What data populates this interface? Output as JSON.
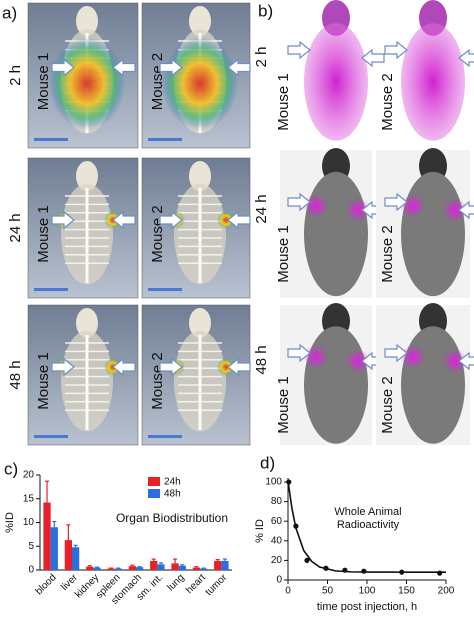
{
  "panel_a": {
    "label": "a)",
    "rows": [
      {
        "time": "2 h",
        "mice": [
          "Mouse 1",
          "Mouse 2"
        ]
      },
      {
        "time": "24 h",
        "mice": [
          "Mouse 1",
          "Mouse 2"
        ]
      },
      {
        "time": "48 h",
        "mice": [
          "Mouse 1",
          "Mouse 2"
        ]
      }
    ]
  },
  "panel_b": {
    "label": "b)",
    "rows": [
      {
        "time": "2 h",
        "mice": [
          "Mouse 1",
          "Mouse 2"
        ]
      },
      {
        "time": "24 h",
        "mice": [
          "Mouse 1",
          "Mouse 2"
        ]
      },
      {
        "time": "48 h",
        "mice": [
          "Mouse 1",
          "Mouse 2"
        ]
      }
    ]
  },
  "chart_data": [
    {
      "type": "bar",
      "panel_label": "c)",
      "annotation": "Organ Biodistribution",
      "ylabel": "%ID",
      "categories": [
        "blood",
        "liver",
        "kidney",
        "spleen",
        "stomach",
        "sm. int.",
        "lung",
        "heart",
        "tumor"
      ],
      "series": [
        {
          "name": "24h",
          "color": "#e8202a",
          "values": [
            14.2,
            6.3,
            0.7,
            0.3,
            0.8,
            1.9,
            1.4,
            0.5,
            1.9
          ],
          "errors": [
            4.5,
            3.2,
            0.2,
            0.1,
            0.2,
            0.4,
            0.9,
            0.2,
            0.3
          ]
        },
        {
          "name": "48h",
          "color": "#2a6fe0",
          "values": [
            9.0,
            4.8,
            0.5,
            0.3,
            0.6,
            1.2,
            0.9,
            0.3,
            1.9
          ],
          "errors": [
            1.2,
            0.4,
            0.1,
            0.1,
            0.1,
            0.3,
            0.2,
            0.1,
            0.4
          ]
        }
      ],
      "ylim": [
        0,
        20
      ],
      "yticks": [
        0,
        5,
        10,
        15,
        20
      ]
    },
    {
      "type": "scatter",
      "panel_label": "d)",
      "annotation": [
        "Whole Animal",
        "Radioactivity"
      ],
      "ylabel": "% ID",
      "xlabel": "time post injection, h",
      "series": [
        {
          "color": "#111111",
          "marker": "circle",
          "x": [
            1,
            10,
            24,
            48,
            72,
            96,
            144,
            192
          ],
          "values": [
            100,
            55,
            20,
            12,
            10,
            9,
            8,
            7
          ]
        },
        {
          "color": "#111111",
          "style": "line",
          "x": [
            0,
            5,
            10,
            20,
            30,
            40,
            60,
            80,
            100,
            150,
            200
          ],
          "values": [
            101,
            73,
            53,
            30,
            19,
            13.3,
            9.3,
            8.3,
            8.1,
            8,
            8
          ]
        }
      ],
      "xlim": [
        0,
        200
      ],
      "xticks": [
        0,
        50,
        100,
        150,
        200
      ],
      "ylim": [
        0,
        100
      ],
      "yticks": [
        0,
        20,
        40,
        60,
        80,
        100
      ]
    }
  ]
}
